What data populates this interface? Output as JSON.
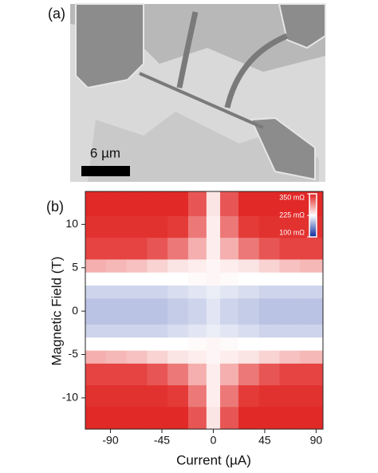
{
  "panel_a": {
    "label": "(a)",
    "scale_bar": "6 µm"
  },
  "chart_data": {
    "type": "heatmap",
    "label": "(b)",
    "xlabel": "Current (µA)",
    "ylabel": "Magnetic Field (T)",
    "xlim": [
      -112,
      96
    ],
    "ylim": [
      -13.6,
      13.8
    ],
    "xticks": [
      -90,
      -45,
      0,
      45,
      90
    ],
    "yticks": [
      -10,
      -5,
      0,
      5,
      10
    ],
    "x_edges": [
      -112,
      -94,
      -76,
      -58,
      -40,
      -22,
      -6,
      6,
      22,
      40,
      58,
      76,
      96
    ],
    "y_edges": [
      -13.6,
      -11,
      -8.5,
      -6,
      -4.5,
      -3,
      -1.5,
      1.5,
      3,
      4.5,
      6,
      8.5,
      11,
      13.8
    ],
    "z": [
      [
        345,
        345,
        345,
        345,
        345,
        320,
        240,
        320,
        345,
        345,
        345,
        345
      ],
      [
        340,
        340,
        340,
        340,
        335,
        300,
        235,
        300,
        335,
        340,
        340,
        340
      ],
      [
        330,
        330,
        330,
        320,
        300,
        270,
        235,
        270,
        300,
        320,
        330,
        330
      ],
      [
        270,
        265,
        260,
        250,
        240,
        235,
        230,
        235,
        240,
        250,
        260,
        265
      ],
      [
        225,
        225,
        225,
        225,
        225,
        228,
        230,
        228,
        225,
        225,
        225,
        225
      ],
      [
        200,
        200,
        200,
        200,
        205,
        210,
        215,
        210,
        205,
        200,
        200,
        200
      ],
      [
        190,
        190,
        190,
        190,
        195,
        200,
        210,
        200,
        195,
        190,
        190,
        190
      ],
      [
        200,
        200,
        200,
        200,
        205,
        210,
        215,
        210,
        205,
        200,
        200,
        200
      ],
      [
        225,
        225,
        225,
        225,
        225,
        228,
        230,
        228,
        225,
        225,
        225,
        225
      ],
      [
        270,
        265,
        260,
        250,
        240,
        235,
        230,
        235,
        240,
        250,
        260,
        265
      ],
      [
        330,
        330,
        330,
        320,
        300,
        270,
        235,
        270,
        300,
        320,
        330,
        330
      ],
      [
        340,
        340,
        340,
        340,
        335,
        300,
        235,
        300,
        335,
        340,
        340,
        340
      ],
      [
        345,
        345,
        345,
        345,
        345,
        320,
        240,
        320,
        345,
        345,
        345,
        345
      ]
    ],
    "zlim": [
      100,
      350
    ],
    "colors": [
      "#0a2a9c",
      "#ffffff",
      "#e0201e"
    ],
    "colorbar_ticks": [
      {
        "value": 350,
        "label": "350 mΩ"
      },
      {
        "value": 225,
        "label": "225 mΩ"
      },
      {
        "value": 100,
        "label": "100 mΩ"
      }
    ]
  }
}
